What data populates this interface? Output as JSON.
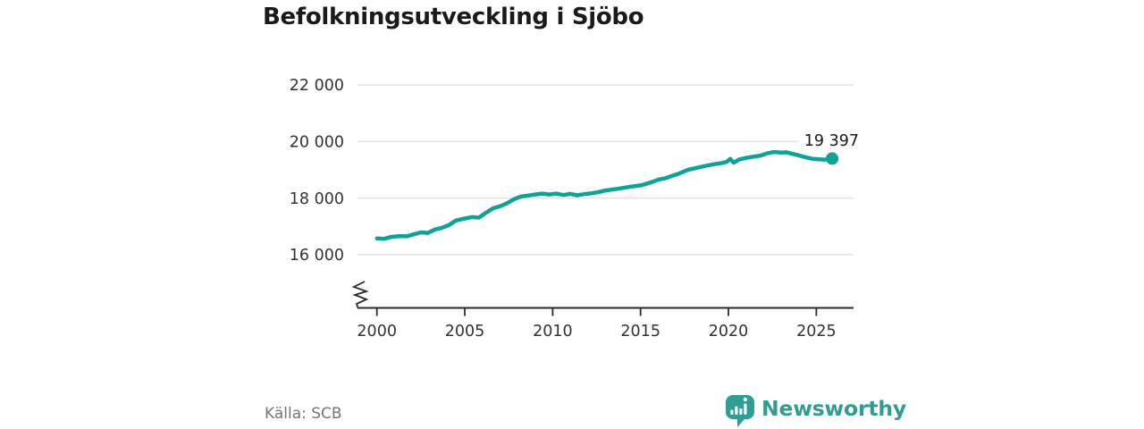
{
  "title": "Befolkningsutveckling i Sjöbo",
  "end_label": "19 397",
  "source": "Källa: SCB",
  "logo": {
    "text": "Newsworthy",
    "icon": "newsworthy-bubble-barchart-icon"
  },
  "colors": {
    "line": "#10a296",
    "logo": "#2f9d93",
    "grid": "#e3e3e3",
    "axis": "#2b2b2b",
    "tick_text": "#333333",
    "title": "#1a1a1a",
    "muted": "#757575",
    "bg": "#ffffff"
  },
  "chart_data": {
    "type": "line",
    "title": "Befolkningsutveckling i Sjöbo",
    "xlabel": "",
    "ylabel": "",
    "grid": true,
    "legend": false,
    "axis_break_at_bottom": true,
    "xlim": [
      2000,
      2027.1
    ],
    "ylim": [
      16000,
      22000
    ],
    "x_ticks": [
      {
        "value": 2000,
        "label": "2000"
      },
      {
        "value": 2005,
        "label": "2005"
      },
      {
        "value": 2010,
        "label": "2010"
      },
      {
        "value": 2015,
        "label": "2015"
      },
      {
        "value": 2020,
        "label": "2020"
      },
      {
        "value": 2025,
        "label": "2025"
      }
    ],
    "y_ticks": [
      {
        "value": 16000,
        "label": "16 000"
      },
      {
        "value": 18000,
        "label": "18 000"
      },
      {
        "value": 20000,
        "label": "20 000"
      },
      {
        "value": 22000,
        "label": "22 000"
      }
    ],
    "x": [
      2000.0,
      2000.4,
      2000.8,
      2001.3,
      2001.7,
      2002.1,
      2002.5,
      2002.9,
      2003.3,
      2003.7,
      2004.1,
      2004.5,
      2005.0,
      2005.4,
      2005.8,
      2006.2,
      2006.6,
      2007.0,
      2007.4,
      2007.8,
      2008.2,
      2008.6,
      2009.0,
      2009.4,
      2009.8,
      2010.2,
      2010.6,
      2011.0,
      2011.4,
      2011.8,
      2012.2,
      2012.6,
      2013.0,
      2013.5,
      2014.0,
      2014.5,
      2015.0,
      2015.3,
      2015.7,
      2016.0,
      2016.4,
      2016.8,
      2017.2,
      2017.7,
      2018.2,
      2018.7,
      2019.2,
      2019.7,
      2019.9,
      2020.1,
      2020.3,
      2020.6,
      2021.0,
      2021.4,
      2021.8,
      2022.2,
      2022.6,
      2023.0,
      2023.3,
      2023.6,
      2024.0,
      2024.4,
      2024.8,
      2025.2,
      2025.5,
      2025.9
    ],
    "series": [
      {
        "name": "Befolkning",
        "color": "#10a296",
        "values": [
          16575,
          16560,
          16630,
          16660,
          16650,
          16720,
          16790,
          16770,
          16890,
          16950,
          17050,
          17210,
          17280,
          17330,
          17310,
          17480,
          17640,
          17710,
          17820,
          17960,
          18060,
          18090,
          18130,
          18160,
          18130,
          18160,
          18110,
          18150,
          18100,
          18140,
          18170,
          18210,
          18270,
          18310,
          18360,
          18410,
          18450,
          18500,
          18580,
          18650,
          18700,
          18790,
          18870,
          19000,
          19070,
          19140,
          19200,
          19245,
          19280,
          19390,
          19250,
          19360,
          19420,
          19460,
          19500,
          19580,
          19630,
          19610,
          19620,
          19570,
          19510,
          19440,
          19390,
          19370,
          19360,
          19397
        ]
      }
    ],
    "end_point": {
      "x": 2025.9,
      "value": 19397,
      "label": "19 397"
    },
    "source": "Källa: SCB"
  }
}
